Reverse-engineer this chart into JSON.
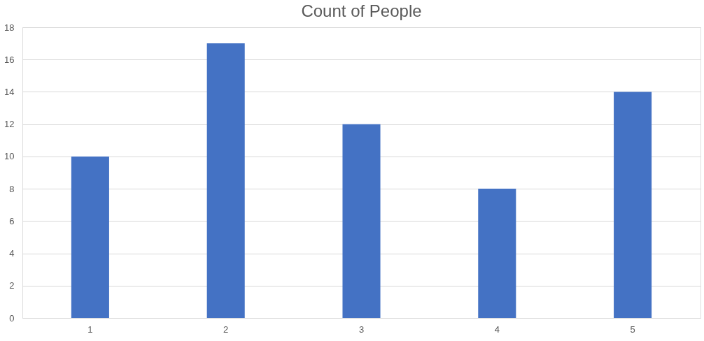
{
  "chart_data": {
    "type": "bar",
    "title": "Count of People",
    "categories": [
      "1",
      "2",
      "3",
      "4",
      "5"
    ],
    "values": [
      10,
      17,
      12,
      8,
      14
    ],
    "color": "#4472c4",
    "ylim": [
      0,
      18
    ],
    "yticks": [
      0,
      2,
      4,
      6,
      8,
      10,
      12,
      14,
      16,
      18
    ],
    "grid": "y"
  }
}
